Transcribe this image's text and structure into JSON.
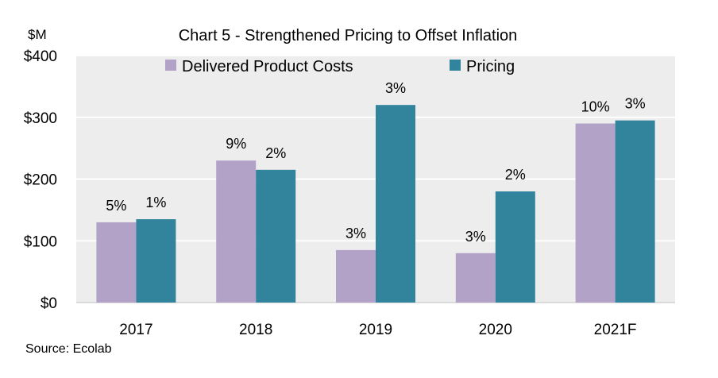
{
  "chart_data": {
    "type": "bar",
    "title": "Chart 5 - Strengthened Pricing to Offset Inflation",
    "unit_label": "$M",
    "source": "Source: Ecolab",
    "categories": [
      "2017",
      "2018",
      "2019",
      "2020",
      "2021F"
    ],
    "ylim": [
      0,
      400
    ],
    "yticks": [
      0,
      100,
      200,
      300,
      400
    ],
    "ytick_labels": [
      "$0",
      "$100",
      "$200",
      "$300",
      "$400"
    ],
    "grid": true,
    "legend_position": "top",
    "series": [
      {
        "name": "Delivered Product Costs",
        "color": "#b3a2c8",
        "values": [
          130,
          230,
          85,
          80,
          290
        ],
        "labels": [
          "5%",
          "9%",
          "3%",
          "3%",
          "10%"
        ]
      },
      {
        "name": "Pricing",
        "color": "#31849b",
        "values": [
          135,
          215,
          320,
          180,
          295
        ],
        "labels": [
          "1%",
          "2%",
          "3%",
          "2%",
          "3%"
        ]
      }
    ],
    "plot_background": "#ededed",
    "grid_color": "#ffffff"
  }
}
